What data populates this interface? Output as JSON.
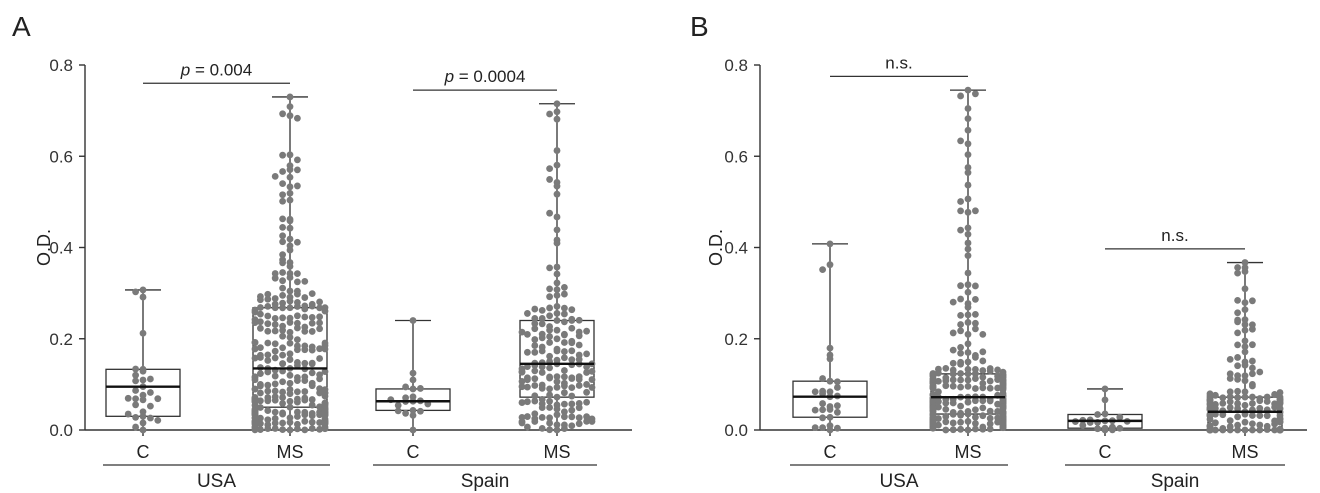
{
  "chart_data": [
    {
      "type": "box",
      "panel": "A",
      "ylabel": "O.D.",
      "ylim": [
        0,
        0.8
      ],
      "yticks": [
        "0.0",
        "0.2",
        "0.4",
        "0.6",
        "0.8"
      ],
      "groups": [
        {
          "name": "USA",
          "significance": {
            "prefix": "p",
            "text": " = 0.004"
          },
          "boxes": [
            {
              "category": "C",
              "q1": 0.03,
              "median": 0.095,
              "q3": 0.133,
              "min": 0.0,
              "max": 0.307,
              "n": 30
            },
            {
              "category": "MS",
              "q1": 0.05,
              "median": 0.135,
              "q3": 0.268,
              "min": 0.0,
              "max": 0.73,
              "n": 300
            }
          ]
        },
        {
          "name": "Spain",
          "significance": {
            "prefix": "p",
            "text": " = 0.0004"
          },
          "boxes": [
            {
              "category": "C",
              "q1": 0.043,
              "median": 0.063,
              "q3": 0.09,
              "min": 0.0,
              "max": 0.24,
              "n": 20
            },
            {
              "category": "MS",
              "q1": 0.072,
              "median": 0.145,
              "q3": 0.24,
              "min": 0.0,
              "max": 0.715,
              "n": 180
            }
          ]
        }
      ]
    },
    {
      "type": "box",
      "panel": "B",
      "ylabel": "O.D.",
      "ylim": [
        0,
        0.8
      ],
      "yticks": [
        "0.0",
        "0.2",
        "0.4",
        "0.6",
        "0.8"
      ],
      "groups": [
        {
          "name": "USA",
          "significance": {
            "prefix": "",
            "text": "n.s."
          },
          "boxes": [
            {
              "category": "C",
              "q1": 0.028,
              "median": 0.073,
              "q3": 0.107,
              "min": 0.0,
              "max": 0.408,
              "n": 30
            },
            {
              "category": "MS",
              "q1": 0.035,
              "median": 0.072,
              "q3": 0.123,
              "min": 0.0,
              "max": 0.745,
              "n": 300
            }
          ]
        },
        {
          "name": "Spain",
          "significance": {
            "prefix": "",
            "text": "n.s."
          },
          "boxes": [
            {
              "category": "C",
              "q1": 0.004,
              "median": 0.02,
              "q3": 0.034,
              "min": 0.0,
              "max": 0.09,
              "n": 20
            },
            {
              "category": "MS",
              "q1": 0.0,
              "median": 0.04,
              "q3": 0.072,
              "min": 0.0,
              "max": 0.367,
              "n": 180
            }
          ]
        }
      ]
    }
  ]
}
